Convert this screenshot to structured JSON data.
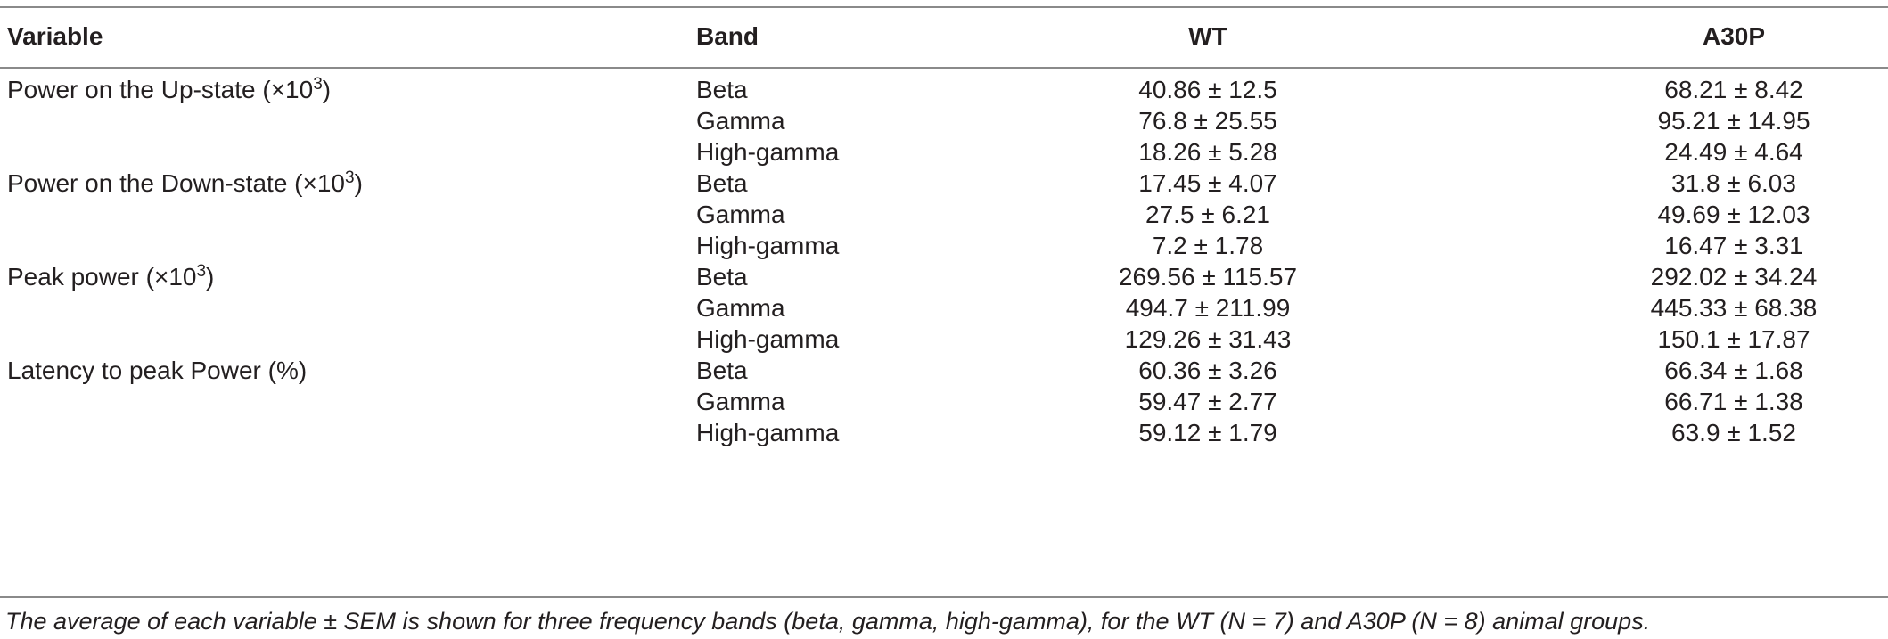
{
  "table": {
    "headers": {
      "variable": "Variable",
      "band": "Band",
      "wt": "WT",
      "a30p": "A30P"
    },
    "rows": [
      {
        "variable": "Power on the Up-state (×10",
        "variable_sup": "3",
        "variable_tail": ")",
        "band": "Beta",
        "wt": "40.86 ± 12.5",
        "a30p": "68.21 ± 8.42"
      },
      {
        "variable": "",
        "band": "Gamma",
        "wt": "76.8 ± 25.55",
        "a30p": "95.21 ± 14.95"
      },
      {
        "variable": "",
        "band": "High-gamma",
        "wt": "18.26 ± 5.28",
        "a30p": "24.49 ± 4.64"
      },
      {
        "variable": "Power on the Down-state (×10",
        "variable_sup": "3",
        "variable_tail": ")",
        "band": "Beta",
        "wt": "17.45 ± 4.07",
        "a30p": "31.8 ± 6.03"
      },
      {
        "variable": "",
        "band": "Gamma",
        "wt": "27.5 ± 6.21",
        "a30p": "49.69 ± 12.03"
      },
      {
        "variable": "",
        "band": "High-gamma",
        "wt": "7.2 ± 1.78",
        "a30p": "16.47 ± 3.31"
      },
      {
        "variable": "Peak power (×10",
        "variable_sup": "3",
        "variable_tail": ")",
        "band": "Beta",
        "wt": "269.56 ± 115.57",
        "a30p": "292.02 ± 34.24"
      },
      {
        "variable": "",
        "band": "Gamma",
        "wt": "494.7 ± 211.99",
        "a30p": "445.33 ± 68.38"
      },
      {
        "variable": "",
        "band": "High-gamma",
        "wt": "129.26 ± 31.43",
        "a30p": "150.1 ± 17.87"
      },
      {
        "variable": "Latency to peak Power (%)",
        "band": "Beta",
        "wt": "60.36 ± 3.26",
        "a30p": "66.34 ± 1.68"
      },
      {
        "variable": "",
        "band": "Gamma",
        "wt": "59.47 ± 2.77",
        "a30p": "66.71 ± 1.38"
      },
      {
        "variable": "",
        "band": "High-gamma",
        "wt": "59.12 ± 1.79",
        "a30p": "63.9 ± 1.52"
      }
    ]
  },
  "caption": "The average of each variable ± SEM is shown for three frequency bands (beta, gamma, high-gamma), for the WT (N = 7) and A30P (N = 8) animal groups."
}
